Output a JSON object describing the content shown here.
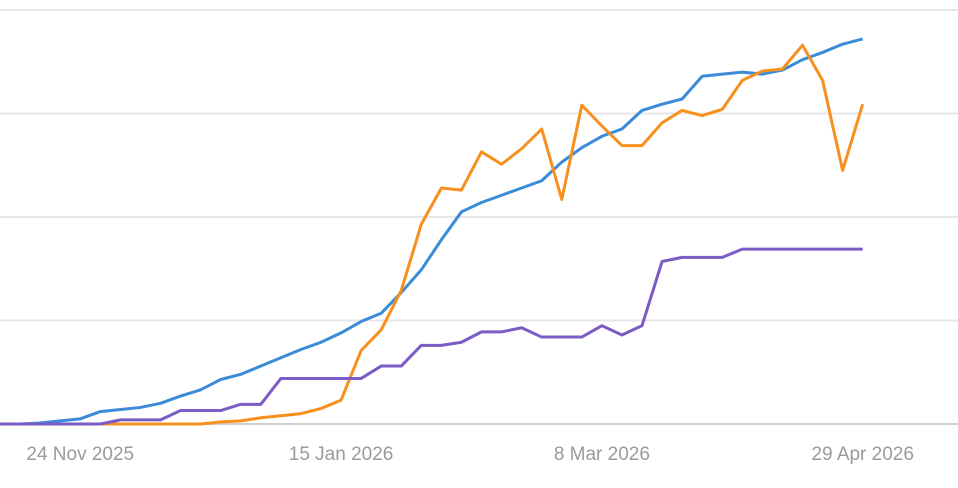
{
  "chart_data": {
    "type": "line",
    "x": [
      "2025-11-08",
      "2025-11-12",
      "2025-11-16",
      "2025-11-20",
      "2025-11-24",
      "2025-11-28",
      "2025-12-02",
      "2025-12-06",
      "2025-12-10",
      "2025-12-14",
      "2025-12-18",
      "2025-12-22",
      "2025-12-26",
      "2025-12-30",
      "2026-01-03",
      "2026-01-07",
      "2026-01-11",
      "2026-01-15",
      "2026-01-19",
      "2026-01-23",
      "2026-01-27",
      "2026-01-31",
      "2026-02-04",
      "2026-02-08",
      "2026-02-12",
      "2026-02-16",
      "2026-02-20",
      "2026-02-24",
      "2026-02-28",
      "2026-03-04",
      "2026-03-08",
      "2026-03-12",
      "2026-03-16",
      "2026-03-20",
      "2026-03-24",
      "2026-03-28",
      "2026-04-01",
      "2026-04-05",
      "2026-04-09",
      "2026-04-13",
      "2026-04-17",
      "2026-04-21",
      "2026-04-25",
      "2026-04-29"
    ],
    "series": [
      {
        "color": "#3a8bd8",
        "values": [
          0,
          0,
          0.01,
          0.03,
          0.05,
          0.12,
          0.14,
          0.16,
          0.2,
          0.27,
          0.33,
          0.43,
          0.48,
          0.56,
          0.64,
          0.72,
          0.79,
          0.88,
          0.99,
          1.07,
          1.27,
          1.49,
          1.78,
          2.05,
          2.14,
          2.21,
          2.28,
          2.35,
          2.53,
          2.67,
          2.78,
          2.85,
          3.03,
          3.09,
          3.14,
          3.36,
          3.38,
          3.4,
          3.38,
          3.42,
          3.52,
          3.59,
          3.67,
          3.72
        ]
      },
      {
        "color": "#f7901e",
        "values": [
          0,
          0,
          0,
          0,
          0,
          0,
          0,
          0,
          0,
          0,
          0,
          0.02,
          0.03,
          0.06,
          0.08,
          0.1,
          0.15,
          0.23,
          0.71,
          0.91,
          1.29,
          1.93,
          2.28,
          2.26,
          2.63,
          2.51,
          2.66,
          2.85,
          2.17,
          3.08,
          2.88,
          2.69,
          2.69,
          2.91,
          3.03,
          2.98,
          3.04,
          3.32,
          3.41,
          3.43,
          3.66,
          3.32,
          2.45,
          3.09
        ]
      },
      {
        "color": "#7b5cc4",
        "values": [
          0,
          0,
          0,
          0,
          0,
          0,
          0.04,
          0.04,
          0.04,
          0.13,
          0.13,
          0.13,
          0.19,
          0.19,
          0.44,
          0.44,
          0.44,
          0.44,
          0.44,
          0.56,
          0.56,
          0.76,
          0.76,
          0.79,
          0.89,
          0.89,
          0.93,
          0.84,
          0.84,
          0.84,
          0.95,
          0.86,
          0.95,
          1.57,
          1.61,
          1.61,
          1.61,
          1.69,
          1.69,
          1.69,
          1.69,
          1.69,
          1.69,
          1.69
        ]
      }
    ],
    "xlim": [
      "2025-11-08",
      "2026-05-18"
    ],
    "xticks": [
      {
        "value": "2025-11-24",
        "label": "24 Nov 2025"
      },
      {
        "value": "2026-01-15",
        "label": "15 Jan 2026"
      },
      {
        "value": "2026-03-08",
        "label": "8 Mar 2026"
      },
      {
        "value": "2026-04-29",
        "label": "29 Apr 2026"
      }
    ],
    "ylim": [
      0,
      4
    ],
    "grid_lines": [
      0,
      1,
      2,
      3,
      4
    ]
  }
}
